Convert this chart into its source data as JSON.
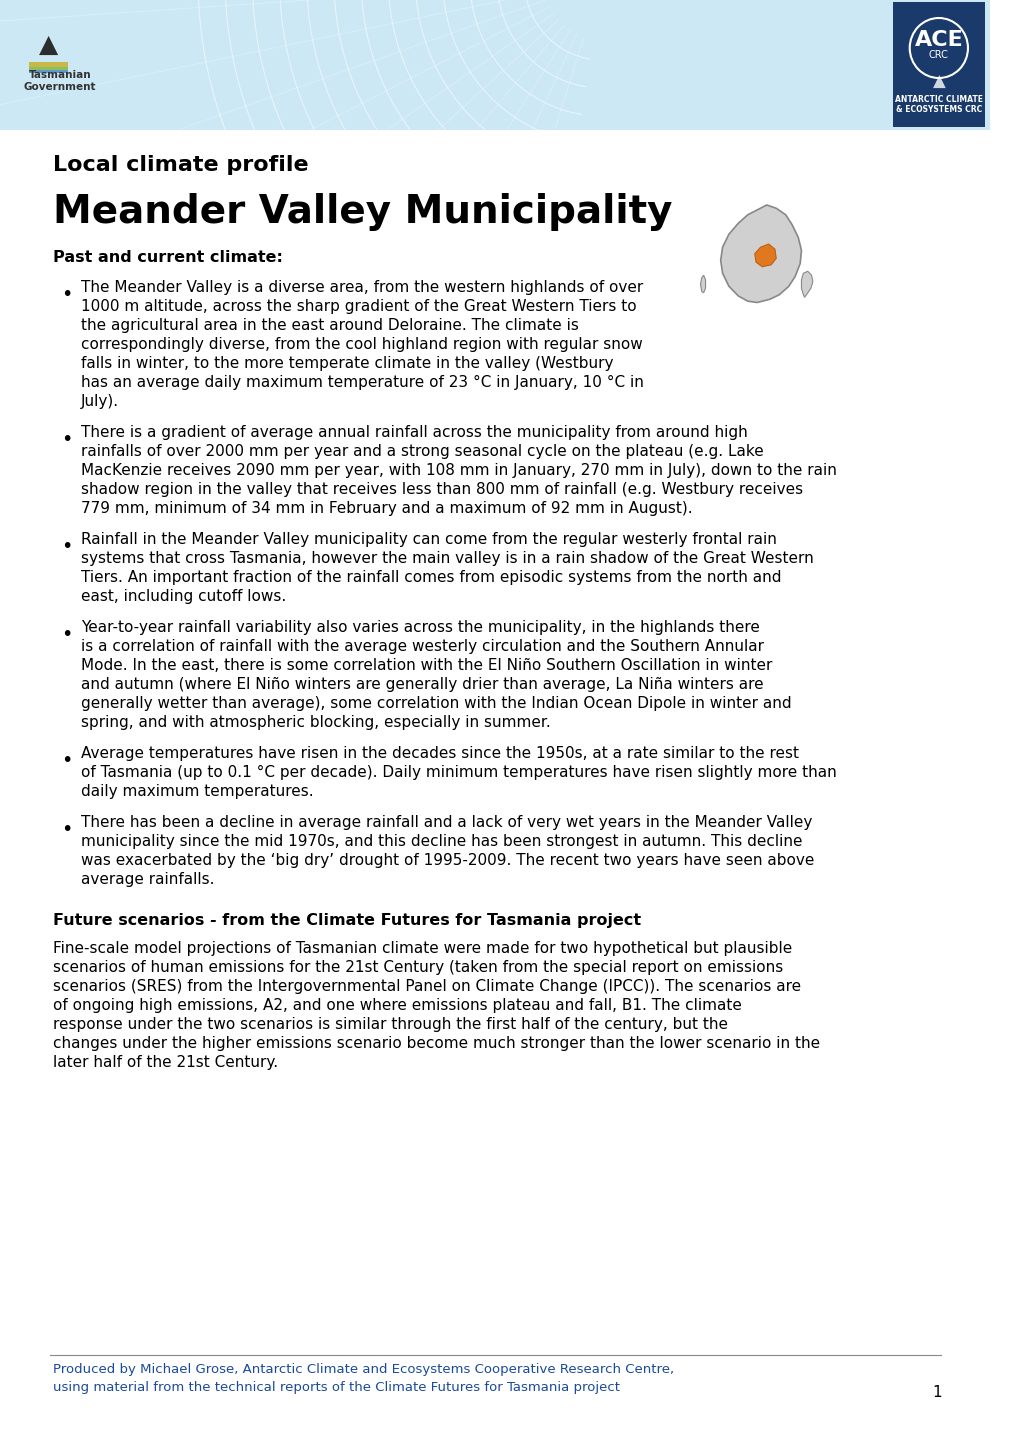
{
  "title_small": "Local climate profile",
  "title_large": "Meander Valley Municipality",
  "section1_header": "Past and current climate:",
  "bullet1": "The Meander Valley is a diverse area, from the western highlands of over 1000 m altitude, across the sharp gradient of the Great Western Tiers to the agricultural area in the east around Deloraine. The climate is correspondingly diverse, from the cool highland region with regular snow falls in winter, to the more temperate climate in the valley (Westbury has an average daily maximum temperature of 23 °C in January, 10 °C in July).",
  "bullet2": "There is a gradient of average annual rainfall across the municipality from around high rainfalls of over 2000 mm per year and a strong seasonal cycle on the plateau (e.g. Lake MacKenzie receives 2090 mm per year, with 108 mm in January, 270 mm in July), down to the rain shadow region in the valley that receives less than 800 mm of rainfall (e.g. Westbury receives 779 mm, minimum of 34 mm in February and a maximum of 92 mm in August).",
  "bullet3": "Rainfall in the Meander Valley municipality can come from the regular westerly frontal rain systems that cross Tasmania, however the main valley is in a rain shadow of the Great Western Tiers. An important fraction of the rainfall comes from episodic systems from the north and east, including cutoff lows.",
  "bullet4": "Year-to-year rainfall variability also varies across the municipality, in the highlands there is a correlation of rainfall with the average westerly circulation and the Southern Annular Mode. In the east, there is some correlation with the El Niño Southern Oscillation in winter and autumn (where El Niño winters are generally drier than average, La Niña winters are generally wetter than average), some correlation with the Indian Ocean Dipole in winter and spring, and with atmospheric blocking, especially in summer.",
  "bullet5": "Average temperatures have risen in the decades since the 1950s, at a rate similar to the rest of Tasmania (up to 0.1 °C per decade). Daily minimum temperatures have risen slightly more than daily maximum temperatures.",
  "bullet6": "There has been a decline in average rainfall and a lack of very wet years in the Meander Valley municipality since the mid 1970s, and this decline has been strongest in autumn. This decline was exacerbated by the ‘big dry’ drought of 1995-2009. The recent two years have seen above average rainfalls.",
  "section2_header": "Future scenarios - from the Climate Futures for Tasmania project",
  "section2_body": "Fine-scale model projections of Tasmanian climate were made for two hypothetical but plausible scenarios of human emissions for the 21st Century (taken from the special report on emissions scenarios (SRES) from the Intergovernmental Panel on Climate Change (IPCC)). The scenarios are of ongoing high emissions, A2, and one where emissions plateau and fall, B1. The climate response under the two scenarios is similar through the first half of the century, but the changes under the higher emissions scenario become much stronger than the lower scenario in the later half of the 21st Century.",
  "footer_line1": "Produced by Michael Grose, Antarctic Climate and Ecosystems Cooperative Research Centre,",
  "footer_line2": "using material from the technical reports of the Climate Futures for Tasmania project",
  "page_number": "1",
  "header_bg_color": "#b8dff0",
  "ace_box_color": "#1a3a6b",
  "text_color": "#000000",
  "footer_color": "#1a4a9b",
  "title_color": "#000000"
}
